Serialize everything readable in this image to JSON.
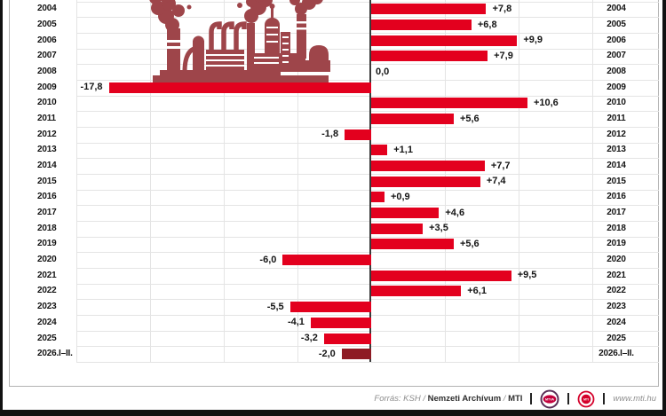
{
  "chart_data": {
    "type": "bar",
    "orientation": "horizontal",
    "title": "",
    "categories": [
      "2004",
      "2005",
      "2006",
      "2007",
      "2008",
      "2009",
      "2010",
      "2011",
      "2012",
      "2013",
      "2014",
      "2015",
      "2016",
      "2017",
      "2018",
      "2019",
      "2020",
      "2021",
      "2022",
      "2023",
      "2024",
      "2025",
      "2026.I–II."
    ],
    "values": [
      7.8,
      6.8,
      9.9,
      7.9,
      0.0,
      -17.8,
      10.6,
      5.6,
      -1.8,
      1.1,
      7.7,
      7.4,
      0.9,
      4.6,
      3.5,
      5.6,
      -6.0,
      9.5,
      6.1,
      -5.5,
      -4.1,
      -3.2,
      -2.0
    ],
    "value_labels": [
      "+7,8",
      "+6,8",
      "+9,9",
      "+7,9",
      "0,0",
      "-17,8",
      "+10,6",
      "+5,6",
      "-1,8",
      "+1,1",
      "+7,7",
      "+7,4",
      "+0,9",
      "+4,6",
      "+3,5",
      "+5,6",
      "-6,0",
      "+9,5",
      "+6,1",
      "-5,5",
      "-4,1",
      "-3,2",
      "-2,0"
    ],
    "xlim": [
      -20,
      15
    ],
    "grid_step": 5,
    "grid_on": true,
    "bar_color": "#e3001e",
    "last_bar_color": "#8e1b24",
    "axis_color": "#3a3a3a",
    "grid_color": "#e4e4e4",
    "factory_color": "#9e454a"
  },
  "footer": {
    "source_italic": "Forrás: KSH /",
    "archive": "Nemzeti Archívum",
    "separator": "/",
    "agency": "MTI",
    "mtva_logo_label": "MTVA",
    "mti_logo_label": "MTI",
    "website": "www.mti.hu"
  }
}
